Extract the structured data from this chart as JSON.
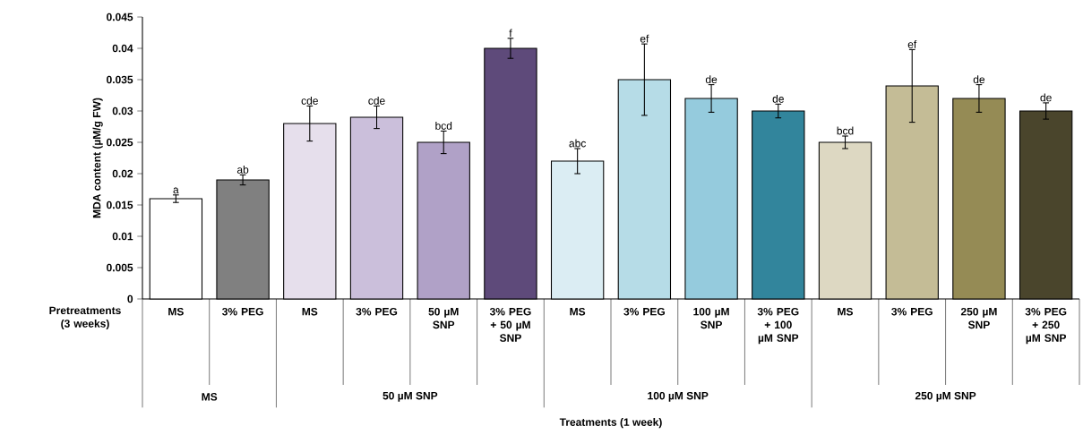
{
  "chart_data": {
    "type": "bar",
    "ylabel": "MDA content (µM/g FW)",
    "categories": [
      "MS",
      "3% PEG",
      "MS",
      "3% PEG",
      "50 µM SNP",
      "3% PEG + 50 µM SNP",
      "MS",
      "3% PEG",
      "100 µM SNP",
      "3% PEG + 100 µM SNP",
      "MS",
      "3% PEG",
      "250 µM SNP",
      "3% PEG + 250 µM SNP"
    ],
    "values": [
      0.016,
      0.019,
      0.028,
      0.029,
      0.025,
      0.04,
      0.022,
      0.035,
      0.032,
      0.03,
      0.025,
      0.034,
      0.032,
      0.03
    ],
    "errors": [
      0.0006,
      0.0008,
      0.0028,
      0.0018,
      0.0018,
      0.0016,
      0.002,
      0.0057,
      0.0022,
      0.0011,
      0.001,
      0.0058,
      0.0022,
      0.0013
    ],
    "colors": [
      "#ffffff",
      "#808080",
      "#e6dfec",
      "#cbbfdb",
      "#b0a1c7",
      "#5e4a7a",
      "#dbedf3",
      "#b6dce7",
      "#95cbdd",
      "#32859c",
      "#ddd8c2",
      "#c4bc96",
      "#958b55",
      "#4a452c"
    ],
    "annotations": [
      "Pretreatments (3 weeks)",
      "MS",
      "50 µM SNP",
      "100 µM SNP",
      "250 µM SNP",
      "Treatments (1 week)",
      "a",
      "ab",
      "cde",
      "cde",
      "bcd",
      "f",
      "abc",
      "ef",
      "de",
      "de",
      "bcd",
      "ef",
      "de",
      "de"
    ],
    "ylim": [
      0,
      0.045
    ],
    "yticks": [
      0,
      0.005,
      0.01,
      0.015,
      0.02,
      0.025,
      0.03,
      0.035,
      0.04,
      0.045
    ],
    "grid": false
  }
}
